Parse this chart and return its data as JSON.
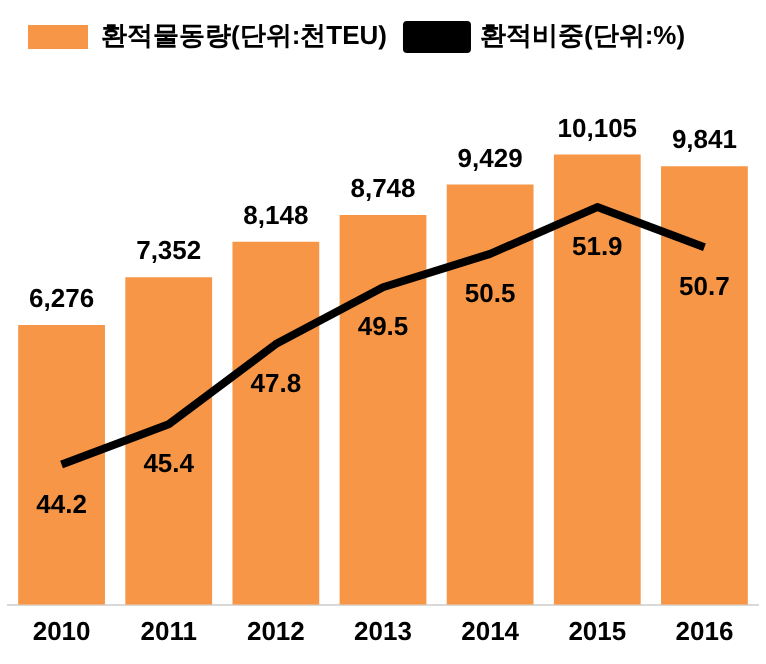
{
  "chart_data": {
    "type": "bar",
    "categories": [
      "2010",
      "2011",
      "2012",
      "2013",
      "2014",
      "2015",
      "2016"
    ],
    "series": [
      {
        "name": "환적물동량(단위:천TEU)",
        "color": "#f79646",
        "values": [
          6276,
          7352,
          8148,
          8748,
          9429,
          10105,
          9841
        ],
        "value_labels": [
          "6,276",
          "7,352",
          "8,148",
          "8,748",
          "9,429",
          "10,105",
          "9,841"
        ]
      },
      {
        "name": "환적비중(단위:%)",
        "type": "line",
        "axis": "y2",
        "color": "#000000",
        "values": [
          44.2,
          45.4,
          47.8,
          49.5,
          50.5,
          51.9,
          50.7
        ],
        "value_labels": [
          "44.2",
          "45.4",
          "47.8",
          "49.5",
          "50.5",
          "51.9",
          "50.7"
        ]
      }
    ],
    "legend": "top left",
    "tick_labels": "x",
    "marker": "none"
  }
}
